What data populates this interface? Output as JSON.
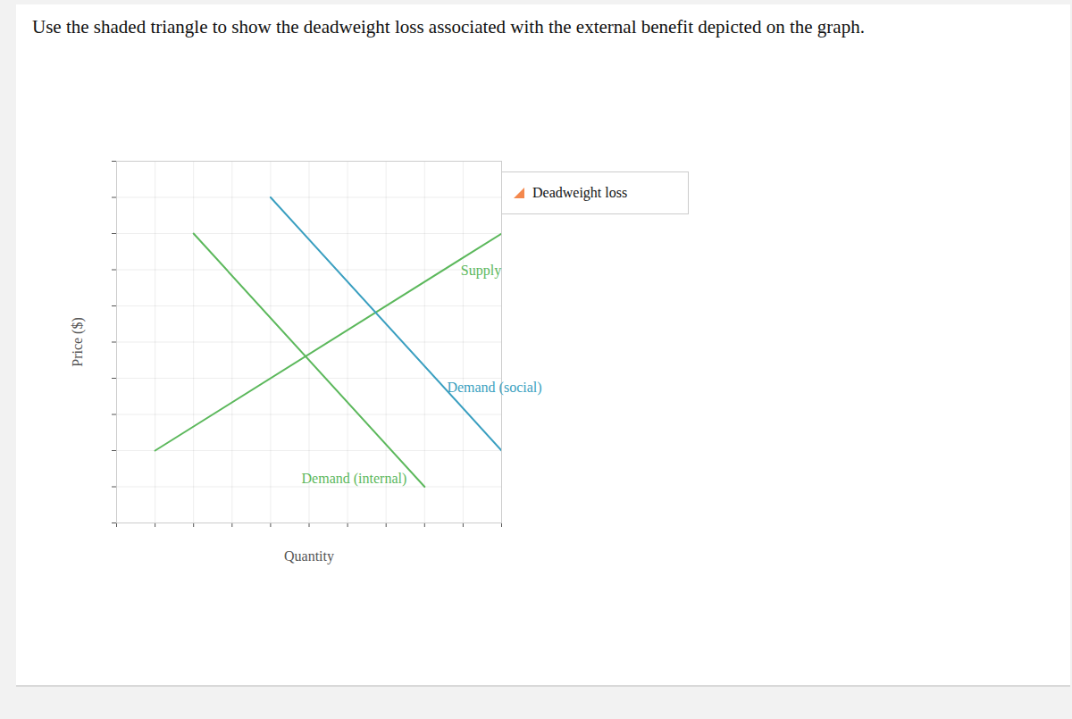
{
  "chart_data": {
    "type": "line",
    "title": "Use the shaded triangle to show the deadweight loss associated with the external benefit depicted on the graph.",
    "x_label": "Quantity",
    "y_label": "Price ($)",
    "xlim": [
      0,
      10
    ],
    "ylim": [
      0,
      10
    ],
    "xticks": [
      0,
      1,
      2,
      3,
      4,
      5,
      6,
      7,
      8,
      9,
      10
    ],
    "yticks": [
      0,
      1,
      2,
      3,
      4,
      5,
      6,
      7,
      8,
      9,
      10
    ],
    "grid": true,
    "tick_labels": false,
    "legend": "top-right",
    "series": [
      {
        "name": "Supply",
        "color": "#5cb85c",
        "x": [
          1,
          10
        ],
        "values": [
          2,
          8
        ]
      },
      {
        "name": "Demand (internal)",
        "color": "#5cb85c",
        "x": [
          2,
          8
        ],
        "values": [
          8,
          1
        ]
      },
      {
        "name": "Demand (social)",
        "color": "#3a9fc0",
        "x": [
          4,
          10
        ],
        "values": [
          9,
          2
        ]
      },
      {
        "name": "Deadweight loss",
        "type": "area",
        "marker": "triangle",
        "color": "#f4884d",
        "x": [],
        "values": []
      }
    ]
  }
}
